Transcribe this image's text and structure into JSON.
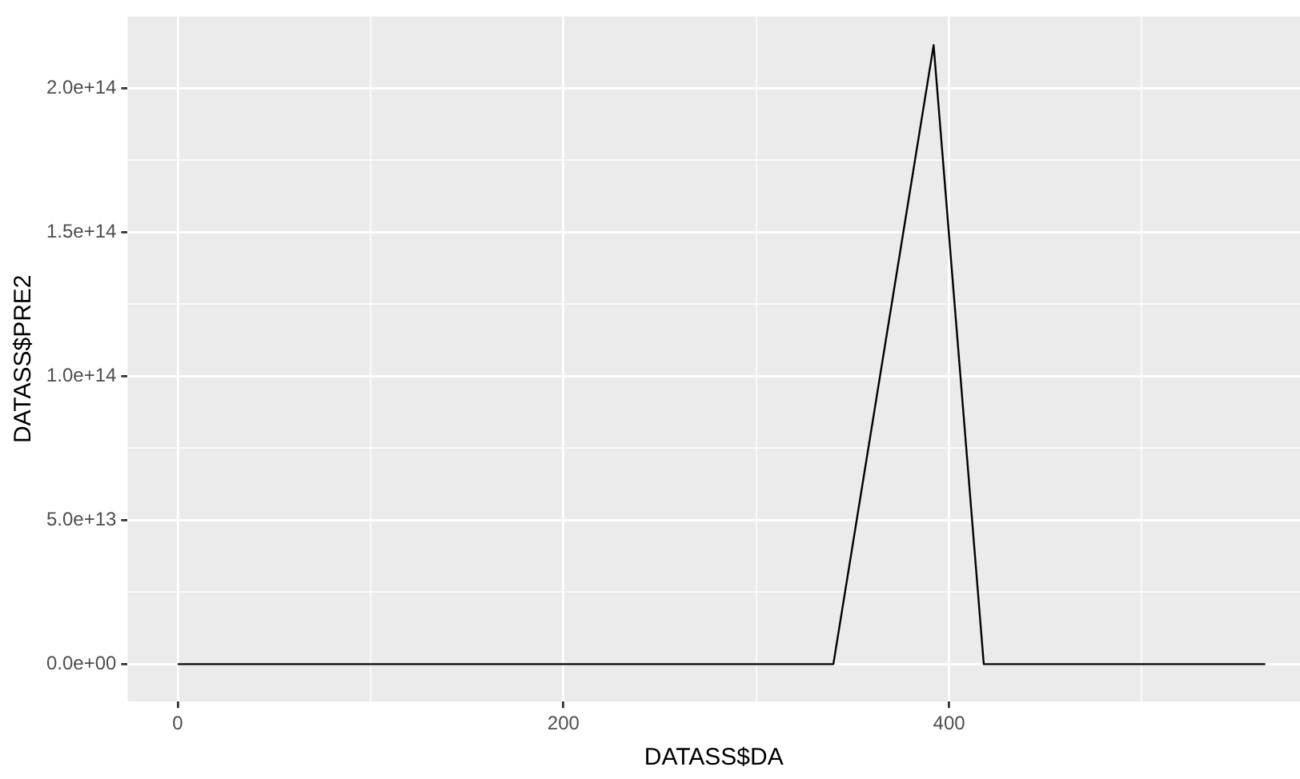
{
  "chart_data": {
    "type": "line",
    "xlabel": "DATASS$DA",
    "ylabel": "DATASS$PRE2",
    "x": [
      0,
      340,
      392,
      418,
      564
    ],
    "series": [
      {
        "color": "#000000",
        "values": [
          0,
          0,
          215000000000000.0,
          0,
          0
        ]
      }
    ],
    "xlim": [
      -26,
      582
    ],
    "xticks": [
      0,
      {
        "value": 100,
        "label": null
      },
      200,
      {
        "value": 300,
        "label": null
      },
      400,
      {
        "value": 500,
        "label": null
      }
    ],
    "ylim": [
      -13000000000000.0,
      225000000000000.0
    ],
    "yticks": [
      {
        "value": 0,
        "label": "0.0e+00"
      },
      {
        "value": 25000000000000.0,
        "label": null
      },
      {
        "value": 50000000000000.0,
        "label": "5.0e+13"
      },
      {
        "value": 75000000000000.0,
        "label": null
      },
      {
        "value": 100000000000000.0,
        "label": "1.0e+14"
      },
      {
        "value": 125000000000000.0,
        "label": null
      },
      {
        "value": 150000000000000.0,
        "label": "1.5e+14"
      },
      {
        "value": 175000000000000.0,
        "label": null
      },
      {
        "value": 200000000000000.0,
        "label": "2.0e+14"
      }
    ],
    "grid": true,
    "legend": false,
    "marker": "none",
    "line_style": "solid"
  }
}
